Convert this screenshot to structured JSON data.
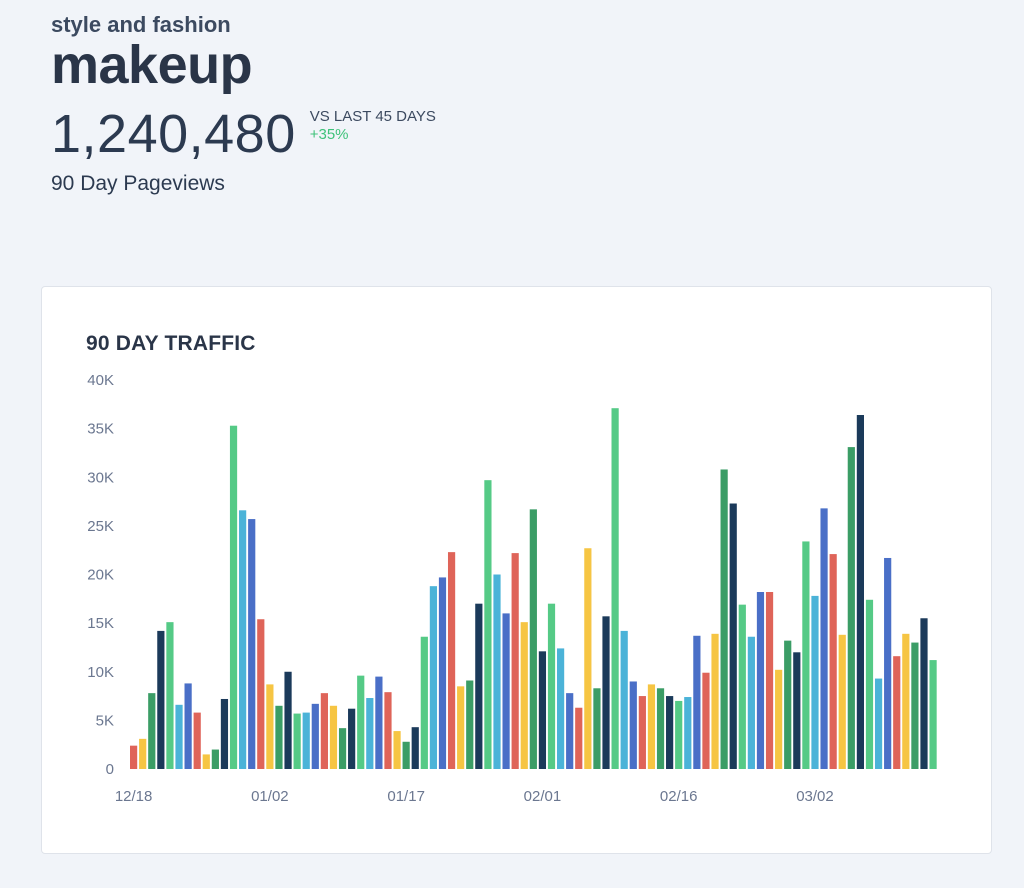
{
  "header": {
    "category": "style and fashion",
    "topic": "makeup",
    "pageviews": "1,240,480",
    "compare_label": "VS LAST 45 DAYS",
    "compare_value": "+35%",
    "metric_label": "90 Day Pageviews"
  },
  "colors": {
    "positive": "#3fc27a",
    "palette": [
      "#df6459",
      "#f6c543",
      "#3b9d66",
      "#1b3a5a",
      "#55ca86",
      "#4bb3d8",
      "#4a6fc7"
    ]
  },
  "chart_data": {
    "type": "bar",
    "title": "90 DAY TRAFFIC",
    "ylim": [
      0,
      40000
    ],
    "y_ticks": [
      {
        "value": 40000,
        "label": "40K"
      },
      {
        "value": 35000,
        "label": "35K"
      },
      {
        "value": 30000,
        "label": "30K"
      },
      {
        "value": 25000,
        "label": "25K"
      },
      {
        "value": 20000,
        "label": "20K"
      },
      {
        "value": 15000,
        "label": "15K"
      },
      {
        "value": 10000,
        "label": "10K"
      },
      {
        "value": 5000,
        "label": "5K"
      },
      {
        "value": 0,
        "label": "0"
      }
    ],
    "x_ticks": [
      {
        "index": 0,
        "label": "12/18"
      },
      {
        "index": 15,
        "label": "01/02"
      },
      {
        "index": 30,
        "label": "01/17"
      },
      {
        "index": 45,
        "label": "02/01"
      },
      {
        "index": 60,
        "label": "02/16"
      },
      {
        "index": 75,
        "label": "03/02"
      }
    ],
    "values": [
      2400,
      3100,
      7800,
      14200,
      15100,
      6600,
      8800,
      5800,
      1500,
      2000,
      7200,
      35300,
      26600,
      25700,
      15400,
      8700,
      6500,
      10000,
      5700,
      5800,
      6700,
      7800,
      6500,
      4200,
      6200,
      9600,
      7300,
      9500,
      7900,
      3900,
      2800,
      4300,
      13600,
      18800,
      19700,
      22300,
      8500,
      9100,
      17000,
      29700,
      20000,
      16000,
      22200,
      15100,
      26700,
      12100,
      17000,
      12400,
      7800,
      6300,
      22700,
      8300,
      15700,
      37100,
      14200,
      9000,
      7500,
      8700,
      8300,
      7500,
      7000,
      7400,
      13700,
      9900,
      13900,
      30800,
      27300,
      16900,
      13600,
      18200,
      18200,
      10200,
      13200,
      12000,
      23400,
      17800,
      26800,
      22100,
      13800,
      33100,
      36400,
      17400,
      9300,
      21700,
      11600,
      13900,
      13000,
      15500,
      11200
    ]
  }
}
